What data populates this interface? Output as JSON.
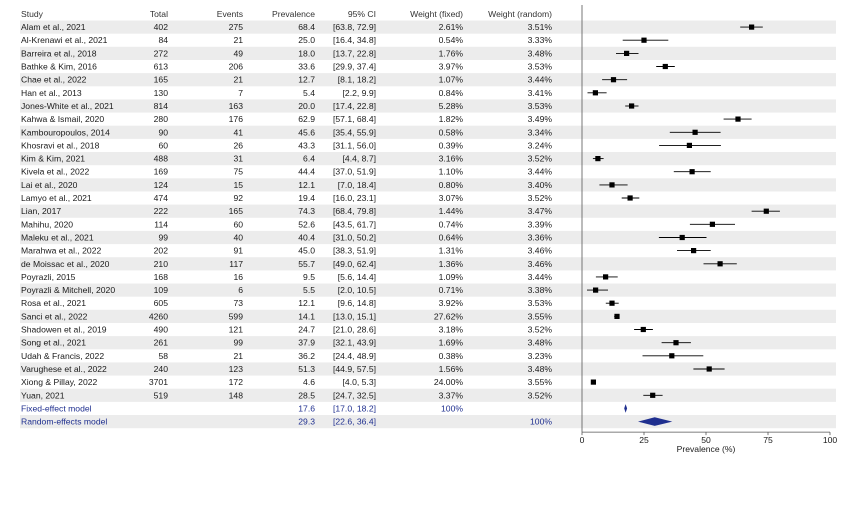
{
  "colors": {
    "row_band": "#ececec",
    "point": "#000000",
    "summary": "#1f2f8f",
    "text": "#1a1a1a",
    "axis": "#555555"
  },
  "headers": {
    "study": "Study",
    "total": "Total",
    "events": "Events",
    "prevalence": "Prevalence",
    "ci": "95% CI",
    "weight_fixed": "Weight (fixed)",
    "weight_random": "Weight (random)"
  },
  "chart_data": {
    "type": "forest",
    "xlabel": "Prevalence (%)",
    "xlim": [
      0,
      100
    ],
    "xticks": [
      "0",
      "25",
      "50",
      "75",
      "100"
    ],
    "xtick_values": [
      0,
      25,
      50,
      75,
      100
    ],
    "studies": [
      {
        "study": "Alam et al., 2021",
        "total": "402",
        "events": "275",
        "prevalence": "68.4",
        "ci": "[63.8, 72.9]",
        "weight_fixed": "2.61%",
        "weight_random": "3.51%",
        "est": 68.4,
        "lo": 63.8,
        "hi": 72.9
      },
      {
        "study": "Al-Krenawi et al., 2021",
        "total": "84",
        "events": "21",
        "prevalence": "25.0",
        "ci": "[16.4, 34.8]",
        "weight_fixed": "0.54%",
        "weight_random": "3.33%",
        "est": 25.0,
        "lo": 16.4,
        "hi": 34.8
      },
      {
        "study": "Barreira et al., 2018",
        "total": "272",
        "events": "49",
        "prevalence": "18.0",
        "ci": "[13.7, 22.8]",
        "weight_fixed": "1.76%",
        "weight_random": "3.48%",
        "est": 18.0,
        "lo": 13.7,
        "hi": 22.8
      },
      {
        "study": "Bathke & Kim, 2016",
        "total": "613",
        "events": "206",
        "prevalence": "33.6",
        "ci": "[29.9, 37.4]",
        "weight_fixed": "3.97%",
        "weight_random": "3.53%",
        "est": 33.6,
        "lo": 29.9,
        "hi": 37.4
      },
      {
        "study": "Chae et al., 2022",
        "total": "165",
        "events": "21",
        "prevalence": "12.7",
        "ci": "[8.1, 18.2]",
        "weight_fixed": "1.07%",
        "weight_random": "3.44%",
        "est": 12.7,
        "lo": 8.1,
        "hi": 18.2
      },
      {
        "study": "Han et al., 2013",
        "total": "130",
        "events": "7",
        "prevalence": "5.4",
        "ci": "[2.2, 9.9]",
        "weight_fixed": "0.84%",
        "weight_random": "3.41%",
        "est": 5.4,
        "lo": 2.2,
        "hi": 9.9
      },
      {
        "study": "Jones-White et al., 2021",
        "total": "814",
        "events": "163",
        "prevalence": "20.0",
        "ci": "[17.4, 22.8]",
        "weight_fixed": "5.28%",
        "weight_random": "3.53%",
        "est": 20.0,
        "lo": 17.4,
        "hi": 22.8
      },
      {
        "study": "Kahwa & Ismail, 2020",
        "total": "280",
        "events": "176",
        "prevalence": "62.9",
        "ci": "[57.1, 68.4]",
        "weight_fixed": "1.82%",
        "weight_random": "3.49%",
        "est": 62.9,
        "lo": 57.1,
        "hi": 68.4
      },
      {
        "study": "Kambouropoulos, 2014",
        "total": "90",
        "events": "41",
        "prevalence": "45.6",
        "ci": "[35.4, 55.9]",
        "weight_fixed": "0.58%",
        "weight_random": "3.34%",
        "est": 45.6,
        "lo": 35.4,
        "hi": 55.9
      },
      {
        "study": "Khosravi et al., 2018",
        "total": "60",
        "events": "26",
        "prevalence": "43.3",
        "ci": "[31.1, 56.0]",
        "weight_fixed": "0.39%",
        "weight_random": "3.24%",
        "est": 43.3,
        "lo": 31.1,
        "hi": 56.0
      },
      {
        "study": "Kim & Kim, 2021",
        "total": "488",
        "events": "31",
        "prevalence": "6.4",
        "ci": "[4.4, 8.7]",
        "weight_fixed": "3.16%",
        "weight_random": "3.52%",
        "est": 6.4,
        "lo": 4.4,
        "hi": 8.7
      },
      {
        "study": "Kivela et al., 2022",
        "total": "169",
        "events": "75",
        "prevalence": "44.4",
        "ci": "[37.0, 51.9]",
        "weight_fixed": "1.10%",
        "weight_random": "3.44%",
        "est": 44.4,
        "lo": 37.0,
        "hi": 51.9
      },
      {
        "study": "Lai et al., 2020",
        "total": "124",
        "events": "15",
        "prevalence": "12.1",
        "ci": "[7.0, 18.4]",
        "weight_fixed": "0.80%",
        "weight_random": "3.40%",
        "est": 12.1,
        "lo": 7.0,
        "hi": 18.4
      },
      {
        "study": "Lamyo et al., 2021",
        "total": "474",
        "events": "92",
        "prevalence": "19.4",
        "ci": "[16.0, 23.1]",
        "weight_fixed": "3.07%",
        "weight_random": "3.52%",
        "est": 19.4,
        "lo": 16.0,
        "hi": 23.1
      },
      {
        "study": "Lian, 2017",
        "total": "222",
        "events": "165",
        "prevalence": "74.3",
        "ci": "[68.4, 79.8]",
        "weight_fixed": "1.44%",
        "weight_random": "3.47%",
        "est": 74.3,
        "lo": 68.4,
        "hi": 79.8
      },
      {
        "study": "Mahihu, 2020",
        "total": "114",
        "events": "60",
        "prevalence": "52.6",
        "ci": "[43.5, 61.7]",
        "weight_fixed": "0.74%",
        "weight_random": "3.39%",
        "est": 52.6,
        "lo": 43.5,
        "hi": 61.7
      },
      {
        "study": "Maleku et al., 2021",
        "total": "99",
        "events": "40",
        "prevalence": "40.4",
        "ci": "[31.0, 50.2]",
        "weight_fixed": "0.64%",
        "weight_random": "3.36%",
        "est": 40.4,
        "lo": 31.0,
        "hi": 50.2
      },
      {
        "study": "Marahwa et al., 2022",
        "total": "202",
        "events": "91",
        "prevalence": "45.0",
        "ci": "[38.3, 51.9]",
        "weight_fixed": "1.31%",
        "weight_random": "3.46%",
        "est": 45.0,
        "lo": 38.3,
        "hi": 51.9
      },
      {
        "study": "de Moissac et al., 2020",
        "total": "210",
        "events": "117",
        "prevalence": "55.7",
        "ci": "[49.0, 62.4]",
        "weight_fixed": "1.36%",
        "weight_random": "3.46%",
        "est": 55.7,
        "lo": 49.0,
        "hi": 62.4
      },
      {
        "study": "Poyrazli, 2015",
        "total": "168",
        "events": "16",
        "prevalence": "9.5",
        "ci": "[5.6, 14.4]",
        "weight_fixed": "1.09%",
        "weight_random": "3.44%",
        "est": 9.5,
        "lo": 5.6,
        "hi": 14.4
      },
      {
        "study": "Poyrazli & Mitchell, 2020",
        "total": "109",
        "events": "6",
        "prevalence": "5.5",
        "ci": "[2.0, 10.5]",
        "weight_fixed": "0.71%",
        "weight_random": "3.38%",
        "est": 5.5,
        "lo": 2.0,
        "hi": 10.5
      },
      {
        "study": "Rosa et al., 2021",
        "total": "605",
        "events": "73",
        "prevalence": "12.1",
        "ci": "[9.6, 14.8]",
        "weight_fixed": "3.92%",
        "weight_random": "3.53%",
        "est": 12.1,
        "lo": 9.6,
        "hi": 14.8
      },
      {
        "study": "Sanci et al., 2022",
        "total": "4260",
        "events": "599",
        "prevalence": "14.1",
        "ci": "[13.0, 15.1]",
        "weight_fixed": "27.62%",
        "weight_random": "3.55%",
        "est": 14.1,
        "lo": 13.0,
        "hi": 15.1
      },
      {
        "study": "Shadowen et al., 2019",
        "total": "490",
        "events": "121",
        "prevalence": "24.7",
        "ci": "[21.0, 28.6]",
        "weight_fixed": "3.18%",
        "weight_random": "3.52%",
        "est": 24.7,
        "lo": 21.0,
        "hi": 28.6
      },
      {
        "study": "Song et al., 2021",
        "total": "261",
        "events": "99",
        "prevalence": "37.9",
        "ci": "[32.1, 43.9]",
        "weight_fixed": "1.69%",
        "weight_random": "3.48%",
        "est": 37.9,
        "lo": 32.1,
        "hi": 43.9
      },
      {
        "study": "Udah & Francis, 2022",
        "total": "58",
        "events": "21",
        "prevalence": "36.2",
        "ci": "[24.4, 48.9]",
        "weight_fixed": "0.38%",
        "weight_random": "3.23%",
        "est": 36.2,
        "lo": 24.4,
        "hi": 48.9
      },
      {
        "study": "Varughese et al., 2022",
        "total": "240",
        "events": "123",
        "prevalence": "51.3",
        "ci": "[44.9, 57.5]",
        "weight_fixed": "1.56%",
        "weight_random": "3.48%",
        "est": 51.3,
        "lo": 44.9,
        "hi": 57.5
      },
      {
        "study": "Xiong & Pillay, 2022",
        "total": "3701",
        "events": "172",
        "prevalence": "4.6",
        "ci": "[4.0, 5.3]",
        "weight_fixed": "24.00%",
        "weight_random": "3.55%",
        "est": 4.6,
        "lo": 4.0,
        "hi": 5.3
      },
      {
        "study": "Yuan, 2021",
        "total": "519",
        "events": "148",
        "prevalence": "28.5",
        "ci": "[24.7, 32.5]",
        "weight_fixed": "3.37%",
        "weight_random": "3.52%",
        "est": 28.5,
        "lo": 24.7,
        "hi": 32.5
      }
    ],
    "summaries": [
      {
        "study": "Fixed-effect model",
        "total": "",
        "events": "",
        "prevalence": "17.6",
        "ci": "[17.0, 18.2]",
        "weight_fixed": "100%",
        "weight_random": "",
        "est": 17.6,
        "lo": 17.0,
        "hi": 18.2
      },
      {
        "study": "Random-effects model",
        "total": "",
        "events": "",
        "prevalence": "29.3",
        "ci": "[22.6, 36.4]",
        "weight_fixed": "",
        "weight_random": "100%",
        "est": 29.3,
        "lo": 22.6,
        "hi": 36.4
      }
    ]
  }
}
